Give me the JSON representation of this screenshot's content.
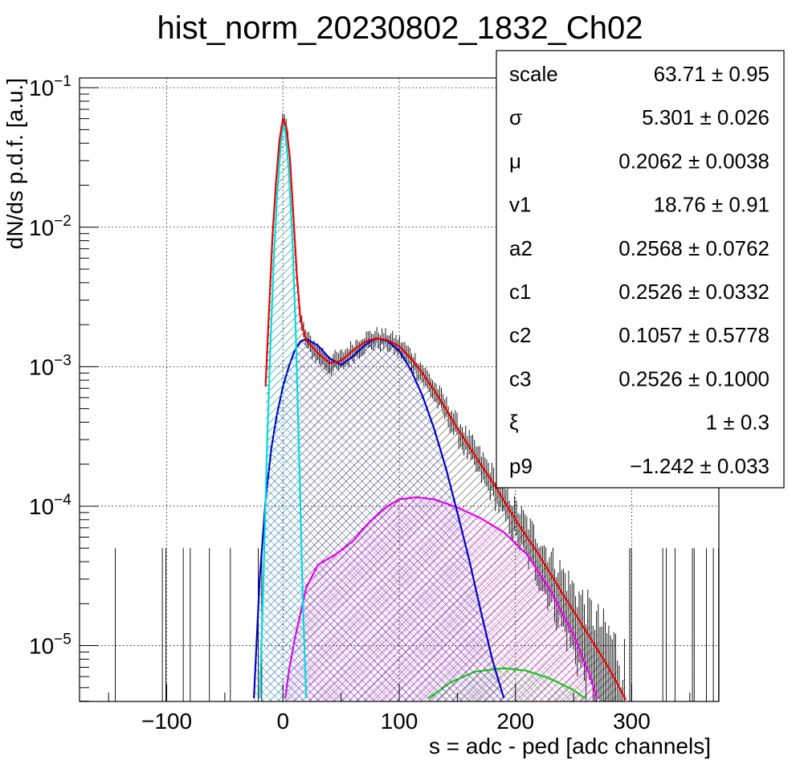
{
  "chart_data": {
    "type": "line",
    "title": "hist_norm_20230802_1832_Ch02",
    "xlabel": "s = adc - ped [adc channels]",
    "ylabel": "dN/ds p.d.f. [a.u.]",
    "xlim": [
      -175,
      375
    ],
    "ylim_log10": [
      -5.4,
      -0.93
    ],
    "yscale": "log",
    "grid": true,
    "x_ticks": [
      -100,
      0,
      100,
      200,
      300
    ],
    "x_tick_labels": [
      "−100",
      "0",
      "100",
      "200",
      "300"
    ],
    "y_ticks": [
      {
        "value": 0.1,
        "base": "10",
        "exp": "−1"
      },
      {
        "value": 0.01,
        "base": "10",
        "exp": "−2"
      },
      {
        "value": 0.001,
        "base": "10",
        "exp": "−3"
      },
      {
        "value": 0.0001,
        "base": "10",
        "exp": "−4"
      },
      {
        "value": 1e-05,
        "base": "10",
        "exp": "−5"
      }
    ],
    "stats_box": {
      "placement": "top-right",
      "rows": [
        {
          "name": "scale",
          "value": "63.71 ± 0.95"
        },
        {
          "name": "σ",
          "value": "5.301 ± 0.026"
        },
        {
          "name": "μ",
          "value": "0.2062 ± 0.0038"
        },
        {
          "name": "v1",
          "value": "18.76 ± 0.91"
        },
        {
          "name": "a2",
          "value": "0.2568 ± 0.0762"
        },
        {
          "name": "c1",
          "value": "0.2526 ± 0.0332"
        },
        {
          "name": "c2",
          "value": "0.1057 ± 0.5778"
        },
        {
          "name": "c3",
          "value": "0.2526 ± 0.1000"
        },
        {
          "name": "ξ",
          "value": "1 ± 0.3"
        },
        {
          "name": "p9",
          "value": "−1.242 ± 0.033"
        }
      ]
    },
    "series": [
      {
        "color": "#ee0000",
        "fill": false,
        "points": [
          [
            -15,
            0.00072
          ],
          [
            -12,
            0.0025
          ],
          [
            -9,
            0.0085
          ],
          [
            -6,
            0.021
          ],
          [
            -3,
            0.042
          ],
          [
            0,
            0.06
          ],
          [
            3,
            0.052
          ],
          [
            6,
            0.031
          ],
          [
            9,
            0.012
          ],
          [
            12,
            0.0045
          ],
          [
            15,
            0.0022
          ],
          [
            20,
            0.00155
          ],
          [
            30,
            0.00125
          ],
          [
            40,
            0.00106
          ],
          [
            50,
            0.0011
          ],
          [
            60,
            0.0013
          ],
          [
            70,
            0.0015
          ],
          [
            80,
            0.0016
          ],
          [
            90,
            0.00155
          ],
          [
            100,
            0.0014
          ],
          [
            110,
            0.00115
          ],
          [
            120,
            0.0009
          ],
          [
            130,
            0.00068
          ],
          [
            140,
            0.0005
          ],
          [
            150,
            0.00036
          ],
          [
            160,
            0.00027
          ],
          [
            170,
            0.0002
          ],
          [
            180,
            0.00015
          ],
          [
            190,
            0.00011
          ],
          [
            200,
            8e-05
          ],
          [
            220,
            4.5e-05
          ],
          [
            240,
            2.4e-05
          ],
          [
            260,
            1.3e-05
          ],
          [
            280,
            7e-06
          ],
          [
            295,
            4.1e-06
          ]
        ]
      },
      {
        "color": "#00dddd",
        "fill": true,
        "points": [
          [
            -20,
            4.2e-06
          ],
          [
            -17,
            2.5e-05
          ],
          [
            -14,
            0.00022
          ],
          [
            -11,
            0.0013
          ],
          [
            -8,
            0.0055
          ],
          [
            -5,
            0.017
          ],
          [
            -2,
            0.038
          ],
          [
            0,
            0.055
          ],
          [
            2,
            0.048
          ],
          [
            5,
            0.026
          ],
          [
            8,
            0.0085
          ],
          [
            11,
            0.0018
          ],
          [
            14,
            0.00022
          ],
          [
            17,
            2.2e-05
          ],
          [
            20,
            4.2e-06
          ]
        ]
      },
      {
        "color": "#0000cc",
        "fill": true,
        "points": [
          [
            -25,
            4.2e-06
          ],
          [
            -20,
            3e-05
          ],
          [
            -15,
            0.00011
          ],
          [
            -10,
            0.00026
          ],
          [
            -5,
            0.00046
          ],
          [
            0,
            0.00072
          ],
          [
            5,
            0.001
          ],
          [
            10,
            0.0013
          ],
          [
            15,
            0.00152
          ],
          [
            20,
            0.00158
          ],
          [
            30,
            0.00142
          ],
          [
            40,
            0.00115
          ],
          [
            50,
            0.00103
          ],
          [
            60,
            0.00118
          ],
          [
            70,
            0.00142
          ],
          [
            80,
            0.0016
          ],
          [
            90,
            0.00153
          ],
          [
            100,
            0.0013
          ],
          [
            110,
            0.00095
          ],
          [
            120,
            0.00062
          ],
          [
            130,
            0.00036
          ],
          [
            140,
            0.00019
          ],
          [
            150,
            9e-05
          ],
          [
            160,
            4.2e-05
          ],
          [
            170,
            1.8e-05
          ],
          [
            180,
            8e-06
          ],
          [
            190,
            4.2e-06
          ]
        ]
      },
      {
        "color": "#ee00ee",
        "fill": true,
        "points": [
          [
            2,
            4.2e-06
          ],
          [
            5,
            6.5e-06
          ],
          [
            10,
            1.1e-05
          ],
          [
            20,
            2.6e-05
          ],
          [
            30,
            3.8e-05
          ],
          [
            45,
            4.5e-05
          ],
          [
            60,
            5.6e-05
          ],
          [
            75,
            7.8e-05
          ],
          [
            90,
            0.0001
          ],
          [
            100,
            0.000112
          ],
          [
            115,
            0.000116
          ],
          [
            130,
            0.000112
          ],
          [
            150,
            9.8e-05
          ],
          [
            170,
            8.2e-05
          ],
          [
            190,
            6.5e-05
          ],
          [
            210,
            4.5e-05
          ],
          [
            230,
            2.5e-05
          ],
          [
            250,
            1.2e-05
          ],
          [
            265,
            5.8e-06
          ],
          [
            270,
            4.2e-06
          ]
        ]
      },
      {
        "color": "#00dd00",
        "fill": true,
        "points": [
          [
            125,
            4.2e-06
          ],
          [
            145,
            5.5e-06
          ],
          [
            165,
            6.5e-06
          ],
          [
            190,
            6.9e-06
          ],
          [
            210,
            6.6e-06
          ],
          [
            230,
            5.8e-06
          ],
          [
            250,
            4.8e-06
          ],
          [
            260,
            4.2e-06
          ]
        ]
      }
    ]
  }
}
